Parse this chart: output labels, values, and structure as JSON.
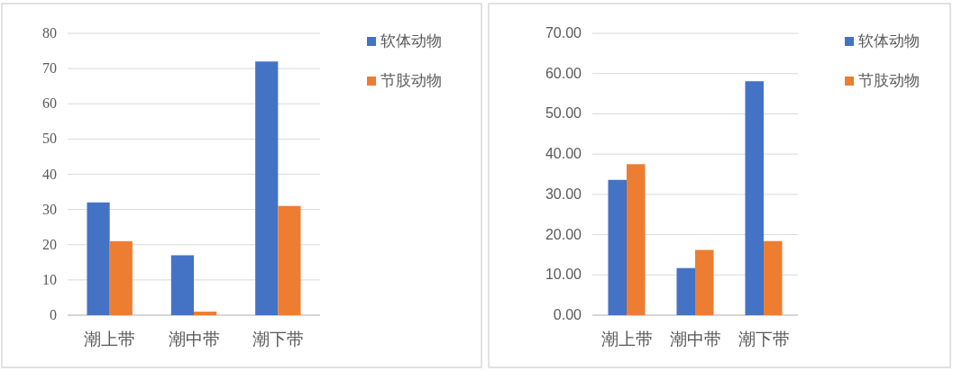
{
  "chart_data": [
    {
      "type": "bar",
      "categories": [
        "潮上带",
        "潮中带",
        "潮下带"
      ],
      "series": [
        {
          "name": "软体动物",
          "color": "#4472c4",
          "values": [
            32,
            17,
            72
          ]
        },
        {
          "name": "节肢动物",
          "color": "#ed7d31",
          "values": [
            21,
            1,
            31
          ]
        }
      ],
      "ylim": [
        0,
        80
      ],
      "yticks": [
        0,
        10,
        20,
        30,
        40,
        50,
        60,
        70,
        80
      ],
      "grid": "y",
      "legend": "top right"
    },
    {
      "type": "bar",
      "categories": [
        "潮上带",
        "潮中带",
        "潮下带"
      ],
      "series": [
        {
          "name": "软体动物",
          "color": "#4472c4",
          "values": [
            33.6,
            11.7,
            58.1
          ]
        },
        {
          "name": "节肢动物",
          "color": "#ed7d31",
          "values": [
            37.5,
            16.2,
            18.4
          ]
        }
      ],
      "ylim": [
        0,
        70
      ],
      "yticks": [
        {
          "value": 0,
          "label": "0.00"
        },
        {
          "value": 10,
          "label": "10.00"
        },
        {
          "value": 20,
          "label": "20.00"
        },
        {
          "value": 30,
          "label": "30.00"
        },
        {
          "value": 40,
          "label": "40.00"
        },
        {
          "value": 50,
          "label": "50.00"
        },
        {
          "value": 60,
          "label": "60.00"
        },
        {
          "value": 70,
          "label": "70.00"
        }
      ],
      "grid": "y",
      "legend": "top right"
    }
  ]
}
